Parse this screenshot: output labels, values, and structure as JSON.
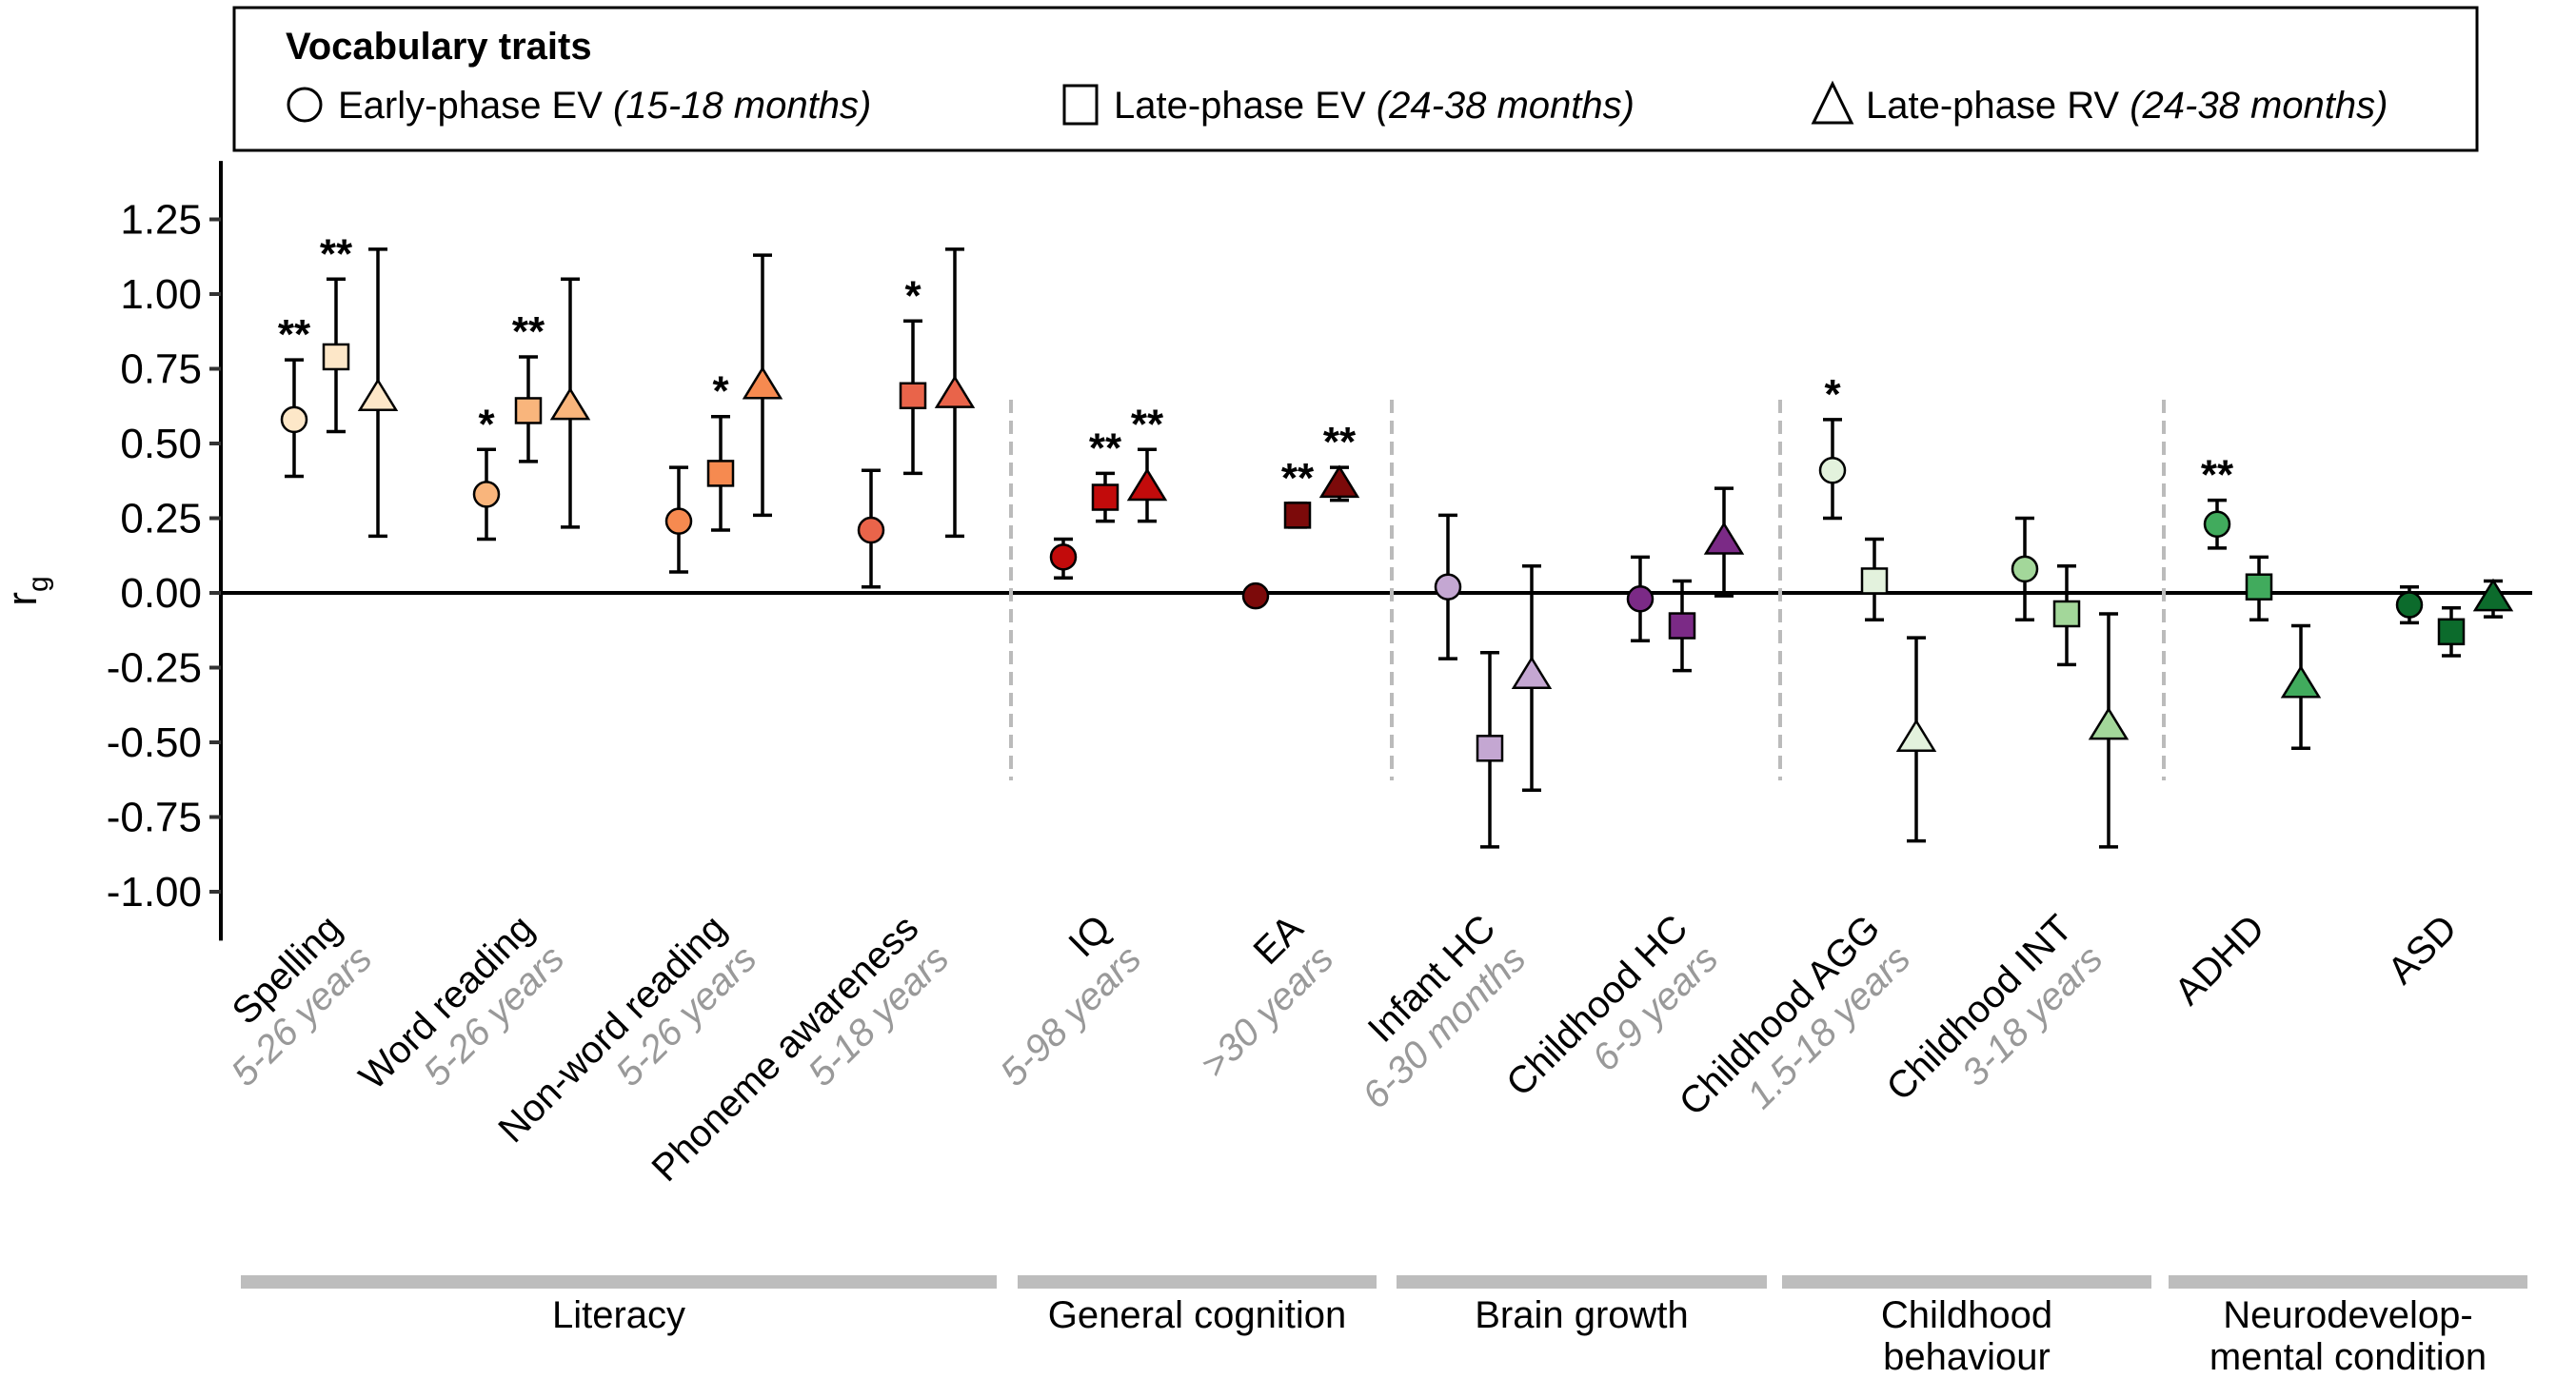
{
  "chart_data": {
    "type": "scatter",
    "subtype": "point-with-errorbars",
    "ylabel": "r",
    "ylabel_subscript": "g",
    "ylim": [
      -1.1,
      1.35
    ],
    "yticks": [
      1.25,
      1.0,
      0.75,
      0.5,
      0.25,
      0.0,
      -0.25,
      -0.5,
      -0.75,
      -1.0
    ],
    "ytick_labels": [
      "1.25",
      "1.00",
      "0.75",
      "0.50",
      "0.25",
      "0.00",
      "-0.25",
      "-0.50",
      "-0.75",
      "-1.00"
    ],
    "reference_line": 0,
    "grid": false,
    "legend": {
      "placement": "top",
      "title": "Vocabulary traits",
      "entries": [
        {
          "shape": "circle",
          "label": "Early-phase EV",
          "note": "(15-18 months)"
        },
        {
          "shape": "square",
          "label": "Late-phase EV",
          "note": "(24-38 months)"
        },
        {
          "shape": "triangle",
          "label": "Late-phase RV",
          "note": "(24-38 months)"
        }
      ]
    },
    "groups": [
      {
        "label": "Literacy",
        "categories": [
          0,
          1,
          2,
          3
        ]
      },
      {
        "label": "General cognition",
        "categories": [
          4,
          5
        ]
      },
      {
        "label": "Brain growth",
        "categories": [
          6,
          7
        ]
      },
      {
        "label": "Childhood behaviour",
        "label_lines": [
          "Childhood",
          "behaviour"
        ],
        "categories": [
          8,
          9
        ]
      },
      {
        "label": "Neurodevelopmental condition",
        "label_lines": [
          "Neurodevelop-",
          "mental condition"
        ],
        "categories": [
          10,
          11
        ]
      }
    ],
    "categories": [
      {
        "label": "Spelling",
        "sub": "5-26 years",
        "color": "#fde7c8",
        "points": [
          {
            "series": "Early-phase EV",
            "value": 0.58,
            "lo": 0.39,
            "hi": 0.78,
            "sig": "**"
          },
          {
            "series": "Late-phase EV",
            "value": 0.79,
            "lo": 0.54,
            "hi": 1.05,
            "sig": "**"
          },
          {
            "series": "Late-phase RV",
            "value": 0.66,
            "lo": 0.19,
            "hi": 1.15,
            "sig": ""
          }
        ]
      },
      {
        "label": "Word reading",
        "sub": "5-26 years",
        "color": "#f9b57c",
        "points": [
          {
            "series": "Early-phase EV",
            "value": 0.33,
            "lo": 0.18,
            "hi": 0.48,
            "sig": "*"
          },
          {
            "series": "Late-phase EV",
            "value": 0.61,
            "lo": 0.44,
            "hi": 0.79,
            "sig": "**"
          },
          {
            "series": "Late-phase RV",
            "value": 0.63,
            "lo": 0.22,
            "hi": 1.05,
            "sig": ""
          }
        ]
      },
      {
        "label": "Non-word reading",
        "sub": "5-26 years",
        "color": "#f68a50",
        "points": [
          {
            "series": "Early-phase EV",
            "value": 0.24,
            "lo": 0.07,
            "hi": 0.42,
            "sig": ""
          },
          {
            "series": "Late-phase EV",
            "value": 0.4,
            "lo": 0.21,
            "hi": 0.59,
            "sig": "*"
          },
          {
            "series": "Late-phase RV",
            "value": 0.7,
            "lo": 0.26,
            "hi": 1.13,
            "sig": ""
          }
        ]
      },
      {
        "label": "Phoneme awareness",
        "sub": "5-18 years",
        "color": "#e9644a",
        "points": [
          {
            "series": "Early-phase EV",
            "value": 0.21,
            "lo": 0.02,
            "hi": 0.41,
            "sig": ""
          },
          {
            "series": "Late-phase EV",
            "value": 0.66,
            "lo": 0.4,
            "hi": 0.91,
            "sig": "*"
          },
          {
            "series": "Late-phase RV",
            "value": 0.67,
            "lo": 0.19,
            "hi": 1.15,
            "sig": ""
          }
        ]
      },
      {
        "label": "IQ",
        "sub": "5-98 years",
        "color": "#c20b0b",
        "points": [
          {
            "series": "Early-phase EV",
            "value": 0.12,
            "lo": 0.05,
            "hi": 0.18,
            "sig": ""
          },
          {
            "series": "Late-phase EV",
            "value": 0.32,
            "lo": 0.24,
            "hi": 0.4,
            "sig": "**"
          },
          {
            "series": "Late-phase RV",
            "value": 0.36,
            "lo": 0.24,
            "hi": 0.48,
            "sig": "**"
          }
        ]
      },
      {
        "label": "EA",
        "sub": ">30 years",
        "color": "#7c0a0a",
        "points": [
          {
            "series": "Early-phase EV",
            "value": -0.01,
            "lo": -0.02,
            "hi": 0.0,
            "sig": ""
          },
          {
            "series": "Late-phase EV",
            "value": 0.26,
            "lo": 0.22,
            "hi": 0.3,
            "sig": "**"
          },
          {
            "series": "Late-phase RV",
            "value": 0.37,
            "lo": 0.31,
            "hi": 0.42,
            "sig": "**"
          }
        ]
      },
      {
        "label": "Infant HC",
        "sub": "6-30 months",
        "color": "#c4a7d2",
        "points": [
          {
            "series": "Early-phase EV",
            "value": 0.02,
            "lo": -0.22,
            "hi": 0.26,
            "sig": ""
          },
          {
            "series": "Late-phase EV",
            "value": -0.52,
            "lo": -0.85,
            "hi": -0.2,
            "sig": ""
          },
          {
            "series": "Late-phase RV",
            "value": -0.27,
            "lo": -0.66,
            "hi": 0.09,
            "sig": ""
          }
        ]
      },
      {
        "label": "Childhood HC",
        "sub": "6-9 years",
        "color": "#7b2a86",
        "points": [
          {
            "series": "Early-phase EV",
            "value": -0.02,
            "lo": -0.16,
            "hi": 0.12,
            "sig": ""
          },
          {
            "series": "Late-phase EV",
            "value": -0.11,
            "lo": -0.26,
            "hi": 0.04,
            "sig": ""
          },
          {
            "series": "Late-phase RV",
            "value": 0.18,
            "lo": -0.01,
            "hi": 0.35,
            "sig": ""
          }
        ]
      },
      {
        "label": "Childhood AGG",
        "sub": "1.5-18 years",
        "color": "#e3f2dd",
        "points": [
          {
            "series": "Early-phase EV",
            "value": 0.41,
            "lo": 0.25,
            "hi": 0.58,
            "sig": "*"
          },
          {
            "series": "Late-phase EV",
            "value": 0.04,
            "lo": -0.09,
            "hi": 0.18,
            "sig": ""
          },
          {
            "series": "Late-phase RV",
            "value": -0.48,
            "lo": -0.83,
            "hi": -0.15,
            "sig": ""
          }
        ]
      },
      {
        "label": "Childhood INT",
        "sub": "3-18 years",
        "color": "#a3d79a",
        "points": [
          {
            "series": "Early-phase EV",
            "value": 0.08,
            "lo": -0.09,
            "hi": 0.25,
            "sig": ""
          },
          {
            "series": "Late-phase EV",
            "value": -0.07,
            "lo": -0.24,
            "hi": 0.09,
            "sig": ""
          },
          {
            "series": "Late-phase RV",
            "value": -0.44,
            "lo": -0.85,
            "hi": -0.07,
            "sig": ""
          }
        ]
      },
      {
        "label": "ADHD",
        "sub": "",
        "color": "#41ab5d",
        "points": [
          {
            "series": "Early-phase EV",
            "value": 0.23,
            "lo": 0.15,
            "hi": 0.31,
            "sig": "**"
          },
          {
            "series": "Late-phase EV",
            "value": 0.02,
            "lo": -0.09,
            "hi": 0.12,
            "sig": ""
          },
          {
            "series": "Late-phase RV",
            "value": -0.3,
            "lo": -0.52,
            "hi": -0.11,
            "sig": ""
          }
        ]
      },
      {
        "label": "ASD",
        "sub": "",
        "color": "#0c6b2c",
        "points": [
          {
            "series": "Early-phase EV",
            "value": -0.04,
            "lo": -0.1,
            "hi": 0.02,
            "sig": ""
          },
          {
            "series": "Late-phase EV",
            "value": -0.13,
            "lo": -0.21,
            "hi": -0.05,
            "sig": ""
          },
          {
            "series": "Late-phase RV",
            "value": -0.01,
            "lo": -0.08,
            "hi": 0.04,
            "sig": ""
          }
        ]
      }
    ]
  }
}
